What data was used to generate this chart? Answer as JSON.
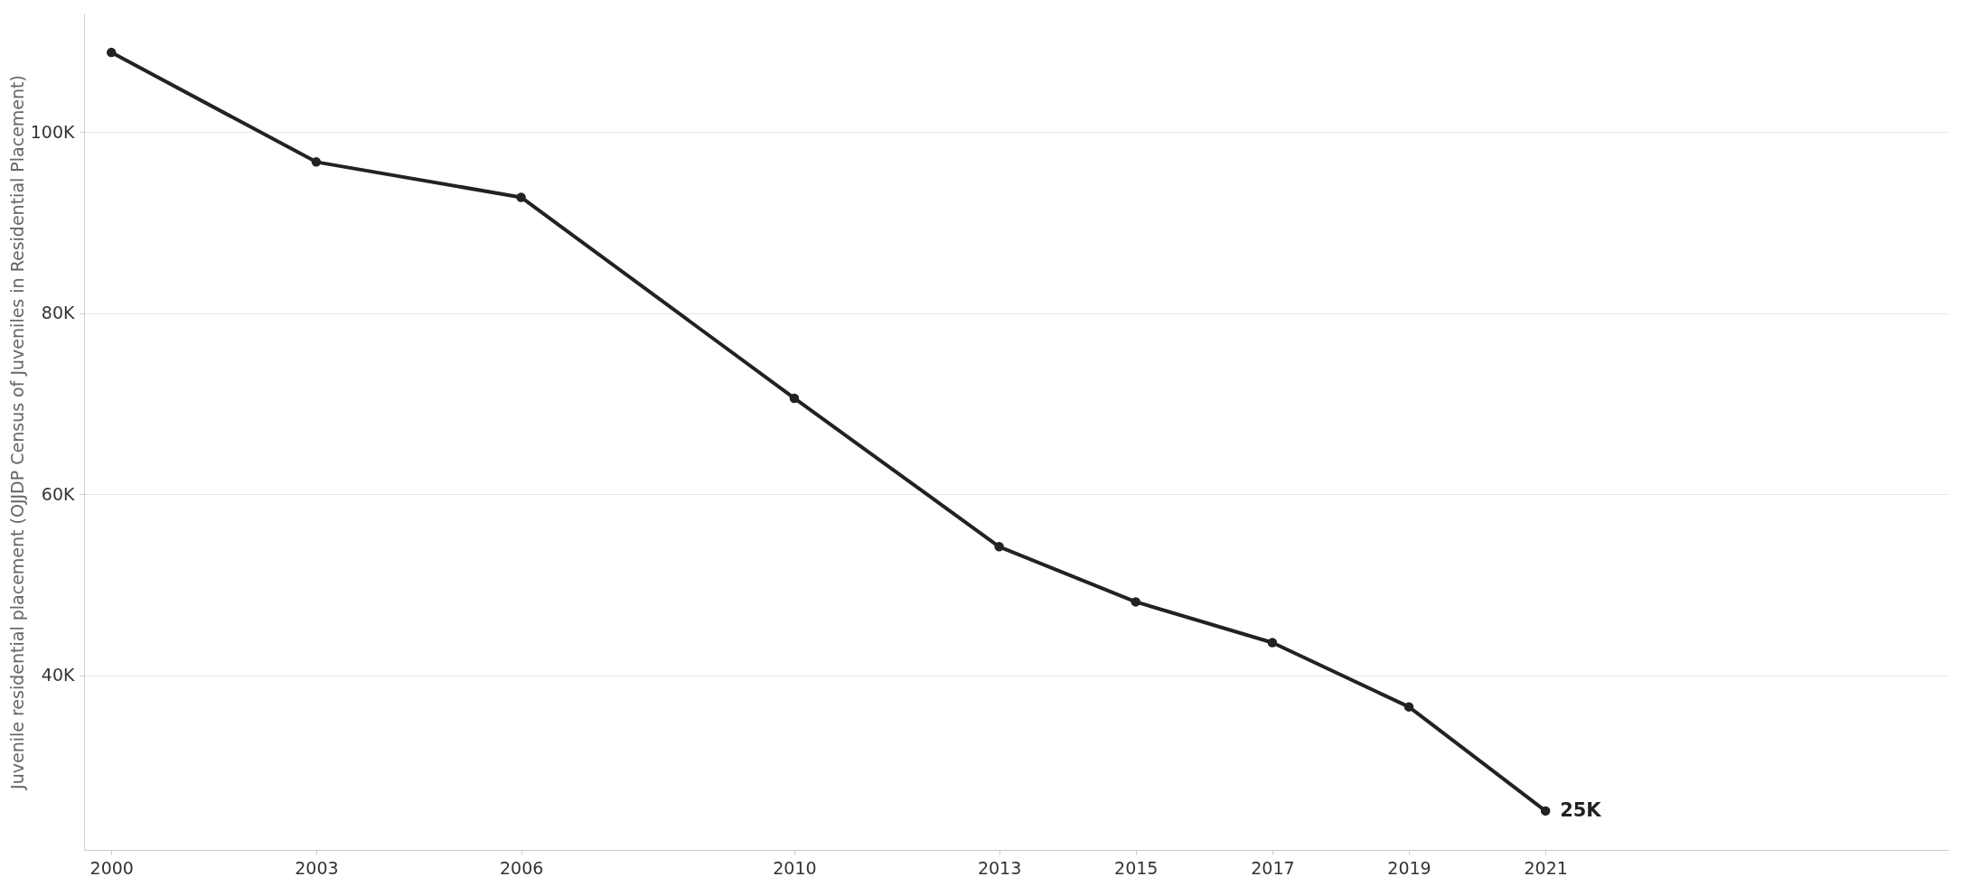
{
  "chart_data": {
    "type": "line",
    "ylabel": "Juvenile residential placement (OJJDP Census of Juveniles in Residential Placement)",
    "x": [
      2000,
      2003,
      2006,
      2010,
      2013,
      2015,
      2017,
      2019,
      2021
    ],
    "series": [
      {
        "color": "#222222",
        "values": [
          108800,
          96700,
          92800,
          70600,
          54200,
          48100,
          43600,
          36500,
          25000
        ]
      }
    ],
    "xlim": [
      1999.6,
      2026.9
    ],
    "xticks": [
      2000,
      2003,
      2006,
      2010,
      2013,
      2015,
      2017,
      2019,
      2021
    ],
    "ylim": [
      20700,
      113100
    ],
    "yticks": [
      {
        "value": 40000,
        "label": "40K"
      },
      {
        "value": 60000,
        "label": "60K"
      },
      {
        "value": 80000,
        "label": "80K"
      },
      {
        "value": 100000,
        "label": "100K"
      }
    ],
    "annotations": [
      {
        "text": "25K",
        "x": 2021,
        "y": 25000
      }
    ],
    "grid": "y",
    "marker": "circle",
    "line_style": "solid"
  }
}
